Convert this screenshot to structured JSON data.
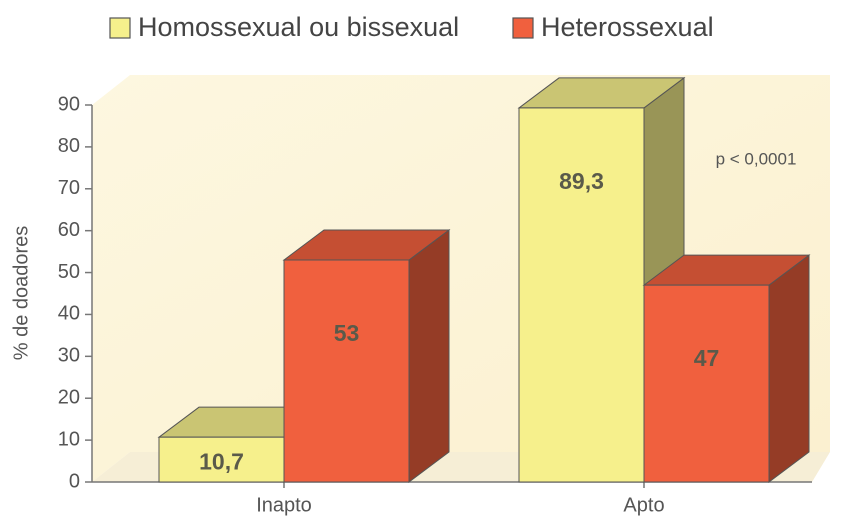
{
  "chart_data": {
    "type": "bar3d",
    "categories": [
      "Inapto",
      "Apto"
    ],
    "series": [
      {
        "name": "Homossexual ou bissexual",
        "color": "#f6f08c",
        "values": [
          10.7,
          89.3
        ],
        "value_labels": [
          "10,7",
          "89,3"
        ]
      },
      {
        "name": "Heterossexual",
        "color": "#f0603e",
        "values": [
          53,
          47
        ],
        "value_labels": [
          "53",
          "47"
        ]
      }
    ],
    "ylabel": "% de doadores",
    "annotation": "p < 0,0001",
    "ylim": [
      0,
      90
    ],
    "yticks": [
      0,
      10,
      20,
      30,
      40,
      50,
      60,
      70,
      80,
      90
    ]
  }
}
